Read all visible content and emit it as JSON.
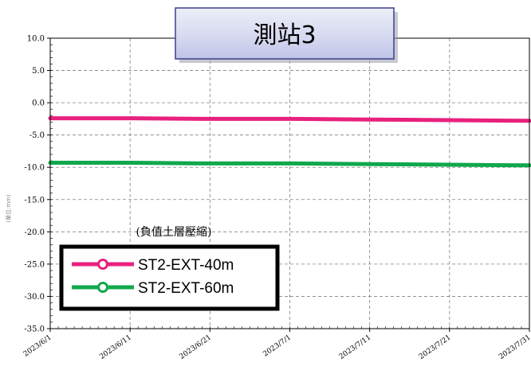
{
  "chart_data": {
    "type": "line",
    "title": "測站3",
    "xlabel": "",
    "ylabel": "(單位:mm)",
    "annotation": "(負值土層壓縮)",
    "x_start": "2023/6/1",
    "x_end": "2023/7/31",
    "x_ticks": [
      "2023/6/1",
      "2023/6/11",
      "2023/6/21",
      "2023/7/1",
      "2023/7/11",
      "2023/7/21",
      "2023/7/31"
    ],
    "ylim": [
      -35.0,
      10.0
    ],
    "y_ticks": [
      "10.0",
      "5.0",
      "0.0",
      "-5.0",
      "-10.0",
      "-15.0",
      "-20.0",
      "-25.0",
      "-30.0",
      "-35.0"
    ],
    "grid": true,
    "legend_position": "bottom-left",
    "series": [
      {
        "name": "ST2-EXT-40m",
        "color": "#e8207e",
        "x": [
          "2023/6/1",
          "2023/6/11",
          "2023/6/21",
          "2023/7/1",
          "2023/7/11",
          "2023/7/21",
          "2023/7/31"
        ],
        "values": [
          -2.4,
          -2.4,
          -2.5,
          -2.5,
          -2.6,
          -2.7,
          -2.8
        ]
      },
      {
        "name": "ST2-EXT-60m",
        "color": "#10a84c",
        "x": [
          "2023/6/1",
          "2023/6/11",
          "2023/6/21",
          "2023/7/1",
          "2023/7/11",
          "2023/7/21",
          "2023/7/31"
        ],
        "values": [
          -9.3,
          -9.3,
          -9.4,
          -9.4,
          -9.5,
          -9.6,
          -9.7
        ]
      }
    ]
  }
}
